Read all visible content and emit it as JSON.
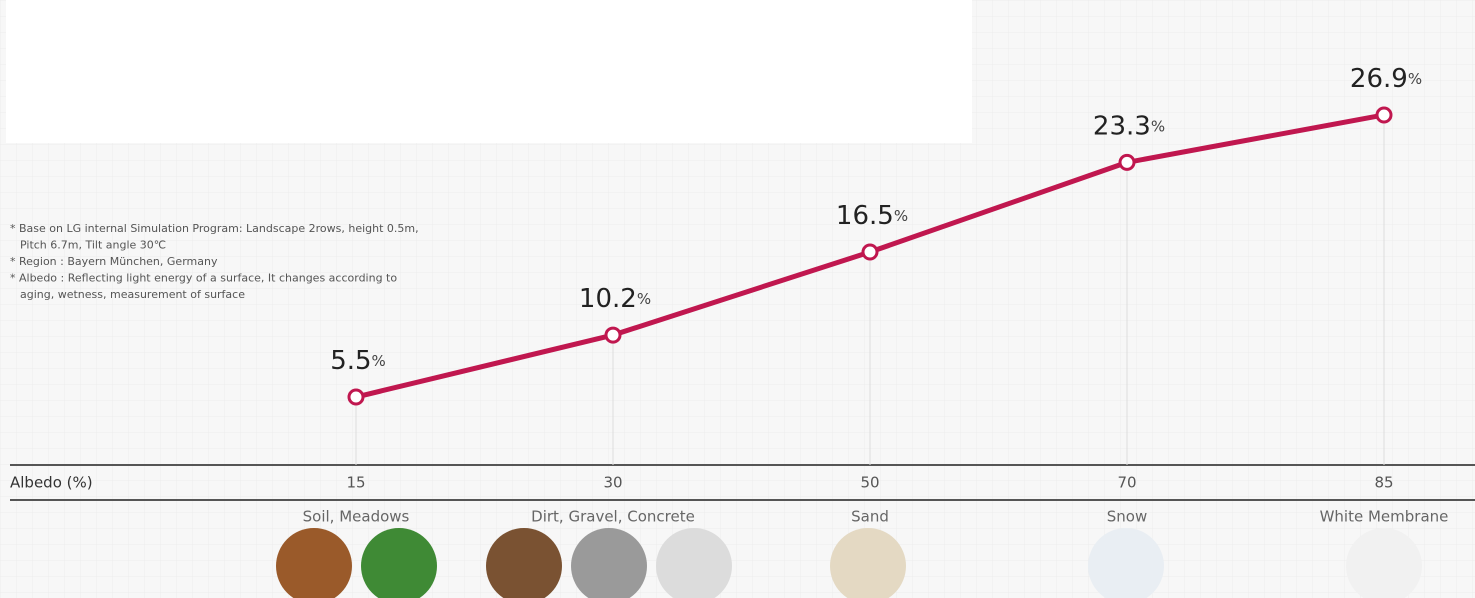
{
  "chart_data": {
    "type": "line",
    "x_label": "Albedo (%)",
    "categories": [
      "15",
      "30",
      "50",
      "70",
      "85"
    ],
    "series": [
      {
        "color": "#c0174f",
        "values": [
          5.5,
          10.2,
          16.5,
          23.3,
          26.9
        ],
        "value_labels": [
          "5.5%",
          "10.2%",
          "16.5%",
          "23.3%",
          "26.9%"
        ]
      }
    ],
    "materials": [
      "Soil, Meadows",
      "Dirt, Gravel, Concrete",
      "Sand",
      "Snow",
      "White Membrane"
    ],
    "notes": [
      "* Base on LG internal Simulation Program: Landscape 2rows, height 0.5m,",
      "Pitch 6.7m, Tilt angle 30℃",
      "* Region : Bayern München, Germany",
      "* Albedo : Reflecting light energy of a surface, It changes according to",
      "aging, wetness, measurement of surface"
    ]
  }
}
